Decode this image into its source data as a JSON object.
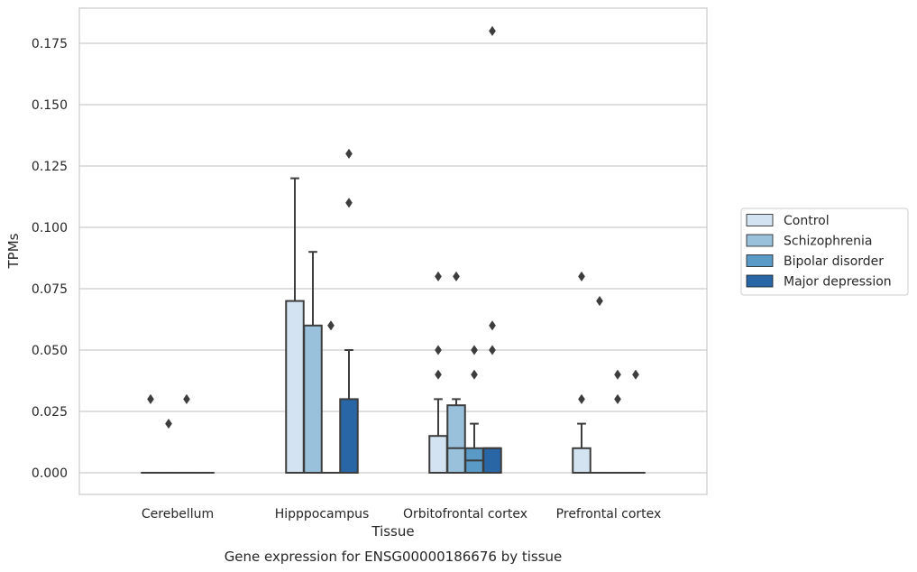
{
  "chart_data": {
    "type": "box",
    "xlabel": "Tissue",
    "ylabel": "TPMs",
    "caption": "Gene expression for ENSG00000186676 by tissue",
    "ylim": [
      -0.009,
      0.191
    ],
    "yticks": [
      "0.000",
      "0.025",
      "0.050",
      "0.075",
      "0.100",
      "0.125",
      "0.150",
      "0.175"
    ],
    "ytick_values": [
      0,
      0.025,
      0.05,
      0.075,
      0.1,
      0.125,
      0.15,
      0.175
    ],
    "grid": "horizontal",
    "legend_position": "right",
    "categories": [
      "Cerebellum",
      "Hipppocampus",
      "Orbitofrontal cortex",
      "Prefrontal cortex"
    ],
    "series": [
      {
        "name": "Control",
        "color": "#d4e3f1",
        "boxes": [
          {
            "q1": 0,
            "median": 0,
            "q3": 0,
            "whisker_low": 0,
            "whisker_high": 0,
            "outliers": [
              0.03
            ]
          },
          {
            "q1": 0,
            "median": 0,
            "q3": 0.07,
            "whisker_low": 0,
            "whisker_high": 0.12,
            "outliers": []
          },
          {
            "q1": 0,
            "median": 0,
            "q3": 0.015,
            "whisker_low": 0,
            "whisker_high": 0.03,
            "outliers": [
              0.04,
              0.05,
              0.08
            ]
          },
          {
            "q1": 0,
            "median": 0,
            "q3": 0.01,
            "whisker_low": 0,
            "whisker_high": 0.02,
            "outliers": [
              0.03,
              0.08
            ]
          }
        ]
      },
      {
        "name": "Schizophrenia",
        "color": "#99c1dc",
        "boxes": [
          {
            "q1": 0,
            "median": 0,
            "q3": 0,
            "whisker_low": 0,
            "whisker_high": 0,
            "outliers": [
              0.02
            ]
          },
          {
            "q1": 0,
            "median": 0,
            "q3": 0.06,
            "whisker_low": 0,
            "whisker_high": 0.09,
            "outliers": []
          },
          {
            "q1": 0,
            "median": 0.01,
            "q3": 0.0275,
            "whisker_low": 0,
            "whisker_high": 0.03,
            "outliers": [
              0.08
            ]
          },
          {
            "q1": 0,
            "median": 0,
            "q3": 0,
            "whisker_low": 0,
            "whisker_high": 0,
            "outliers": [
              0.07
            ]
          }
        ]
      },
      {
        "name": "Bipolar disorder",
        "color": "#5a9ac6",
        "boxes": [
          {
            "q1": 0,
            "median": 0,
            "q3": 0,
            "whisker_low": 0,
            "whisker_high": 0,
            "outliers": [
              0.03
            ]
          },
          {
            "q1": 0,
            "median": 0,
            "q3": 0,
            "whisker_low": 0,
            "whisker_high": 0,
            "outliers": [
              0.06
            ]
          },
          {
            "q1": 0,
            "median": 0.005,
            "q3": 0.01,
            "whisker_low": 0,
            "whisker_high": 0.02,
            "outliers": [
              0.04,
              0.05
            ]
          },
          {
            "q1": 0,
            "median": 0,
            "q3": 0,
            "whisker_low": 0,
            "whisker_high": 0,
            "outliers": [
              0.03,
              0.04
            ]
          }
        ]
      },
      {
        "name": "Major depression",
        "color": "#2866a6",
        "boxes": [
          {
            "q1": 0,
            "median": 0,
            "q3": 0,
            "whisker_low": 0,
            "whisker_high": 0,
            "outliers": []
          },
          {
            "q1": 0,
            "median": 0,
            "q3": 0.03,
            "whisker_low": 0,
            "whisker_high": 0.05,
            "outliers": [
              0.11,
              0.13
            ]
          },
          {
            "q1": 0,
            "median": 0.01,
            "q3": 0.01,
            "whisker_low": 0,
            "whisker_high": 0.01,
            "outliers": [
              0.05,
              0.06,
              0.18
            ]
          },
          {
            "q1": 0,
            "median": 0,
            "q3": 0,
            "whisker_low": 0,
            "whisker_high": 0,
            "outliers": [
              0.04
            ]
          }
        ]
      }
    ]
  }
}
